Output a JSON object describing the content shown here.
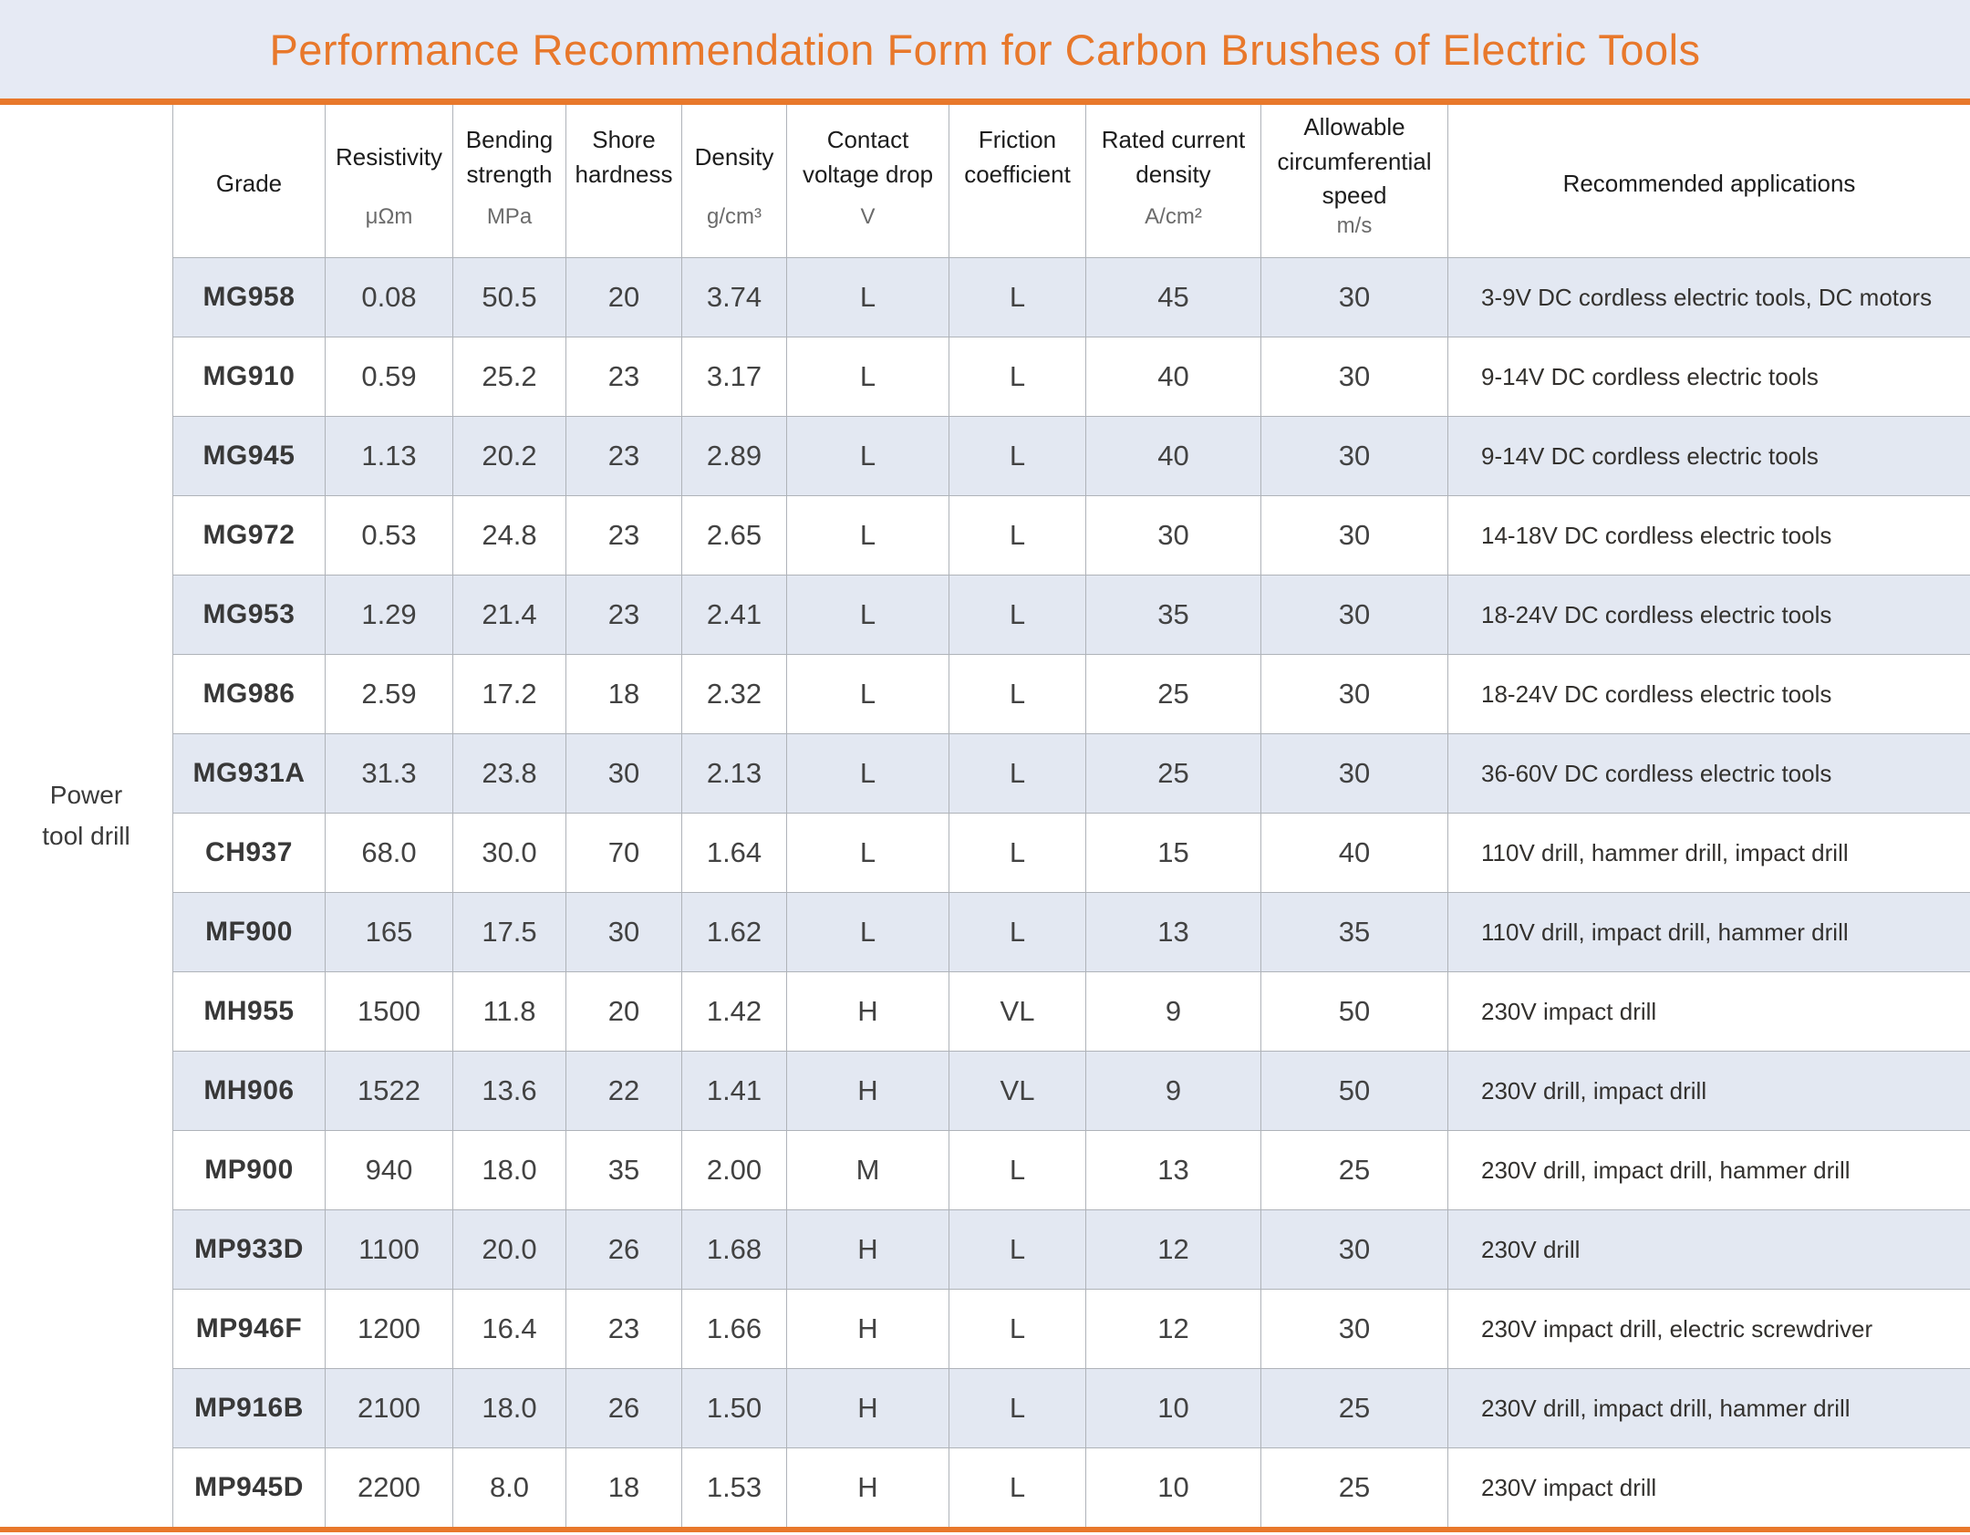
{
  "title": "Performance Recommendation Form for Carbon Brushes of Electric Tools",
  "category": {
    "label": "Power\ntool drill"
  },
  "table": {
    "columns": [
      {
        "key": "grade",
        "label": "Grade",
        "unit": ""
      },
      {
        "key": "resistivity",
        "label": "Resistivity",
        "unit": "μΩm"
      },
      {
        "key": "bending_strength",
        "label": "Bending strength",
        "unit": "MPa"
      },
      {
        "key": "shore_hardness",
        "label": "Shore hardness",
        "unit": ""
      },
      {
        "key": "density",
        "label": "Density",
        "unit": "g/cm³"
      },
      {
        "key": "contact_voltage_drop",
        "label": "Contact voltage drop",
        "unit": "V"
      },
      {
        "key": "friction_coefficient",
        "label": "Friction coefficient",
        "unit": ""
      },
      {
        "key": "rated_current_density",
        "label": "Rated current density",
        "unit": "A/cm²"
      },
      {
        "key": "allowable_circumferential_speed",
        "label": "Allowable circumferential speed",
        "unit": "m/s"
      },
      {
        "key": "recommended_applications",
        "label": "Recommended applications",
        "unit": ""
      }
    ],
    "rows": [
      [
        "MG958",
        "0.08",
        "50.5",
        "20",
        "3.74",
        "L",
        "L",
        "45",
        "30",
        "3-9V DC cordless electric tools, DC motors"
      ],
      [
        "MG910",
        "0.59",
        "25.2",
        "23",
        "3.17",
        "L",
        "L",
        "40",
        "30",
        "9-14V DC cordless electric tools"
      ],
      [
        "MG945",
        "1.13",
        "20.2",
        "23",
        "2.89",
        "L",
        "L",
        "40",
        "30",
        "9-14V DC cordless electric tools"
      ],
      [
        "MG972",
        "0.53",
        "24.8",
        "23",
        "2.65",
        "L",
        "L",
        "30",
        "30",
        "14-18V DC cordless electric tools"
      ],
      [
        "MG953",
        "1.29",
        "21.4",
        "23",
        "2.41",
        "L",
        "L",
        "35",
        "30",
        "18-24V DC cordless electric tools"
      ],
      [
        "MG986",
        "2.59",
        "17.2",
        "18",
        "2.32",
        "L",
        "L",
        "25",
        "30",
        "18-24V DC cordless electric tools"
      ],
      [
        "MG931A",
        "31.3",
        "23.8",
        "30",
        "2.13",
        "L",
        "L",
        "25",
        "30",
        "36-60V DC cordless electric tools"
      ],
      [
        "CH937",
        "68.0",
        "30.0",
        "70",
        "1.64",
        "L",
        "L",
        "15",
        "40",
        "110V drill, hammer drill, impact drill"
      ],
      [
        "MF900",
        "165",
        "17.5",
        "30",
        "1.62",
        "L",
        "L",
        "13",
        "35",
        "110V drill, impact drill, hammer drill"
      ],
      [
        "MH955",
        "1500",
        "11.8",
        "20",
        "1.42",
        "H",
        "VL",
        "9",
        "50",
        "230V impact drill"
      ],
      [
        "MH906",
        "1522",
        "13.6",
        "22",
        "1.41",
        "H",
        "VL",
        "9",
        "50",
        "230V drill, impact drill"
      ],
      [
        "MP900",
        "940",
        "18.0",
        "35",
        "2.00",
        "M",
        "L",
        "13",
        "25",
        "230V drill, impact drill, hammer drill"
      ],
      [
        "MP933D",
        "1100",
        "20.0",
        "26",
        "1.68",
        "H",
        "L",
        "12",
        "30",
        "230V drill"
      ],
      [
        "MP946F",
        "1200",
        "16.4",
        "23",
        "1.66",
        "H",
        "L",
        "12",
        "30",
        "230V impact drill, electric screwdriver"
      ],
      [
        "MP916B",
        "2100",
        "18.0",
        "26",
        "1.50",
        "H",
        "L",
        "10",
        "25",
        "230V drill, impact drill, hammer drill"
      ],
      [
        "MP945D",
        "2200",
        "8.0",
        "18",
        "1.53",
        "H",
        "L",
        "10",
        "25",
        "230V impact drill"
      ]
    ]
  },
  "colors": {
    "accent_orange": "#E8782B",
    "band_bg": "#E6EAF4",
    "stripe_bg": "#E3E8F2",
    "border": "#AFB3B9",
    "header_text": "#1C1C1C",
    "unit_text": "#6B6B6B",
    "value_text": "#424242",
    "grade_text": "#383838",
    "apps_text": "#33312E",
    "category_text": "#3A3A3A"
  }
}
